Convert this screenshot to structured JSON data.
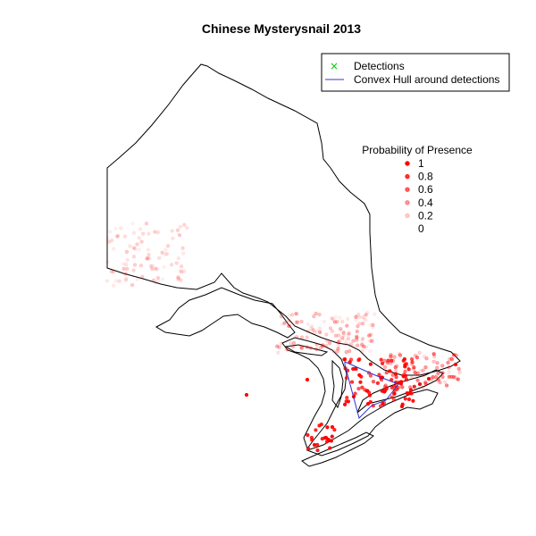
{
  "title": "Chinese Mysterysnail 2013",
  "legend_main": {
    "items": [
      {
        "symbol": "x",
        "color": "#00cc00",
        "label": "Detections"
      },
      {
        "symbol": "line",
        "color": "#3333cc",
        "label": "Convex Hull around detections"
      }
    ]
  },
  "legend_probability": {
    "title": "Probability of Presence",
    "levels": [
      {
        "label": "1",
        "alpha": 1.0
      },
      {
        "label": "0.8",
        "alpha": 0.8
      },
      {
        "label": "0.6",
        "alpha": 0.6
      },
      {
        "label": "0.4",
        "alpha": 0.4
      },
      {
        "label": "0.2",
        "alpha": 0.2
      },
      {
        "label": "0",
        "alpha": 0.0
      }
    ]
  },
  "colors": {
    "presence": "#ff0000",
    "detection": "#00cc00",
    "hull": "#3333cc",
    "outline": "#000000"
  }
}
